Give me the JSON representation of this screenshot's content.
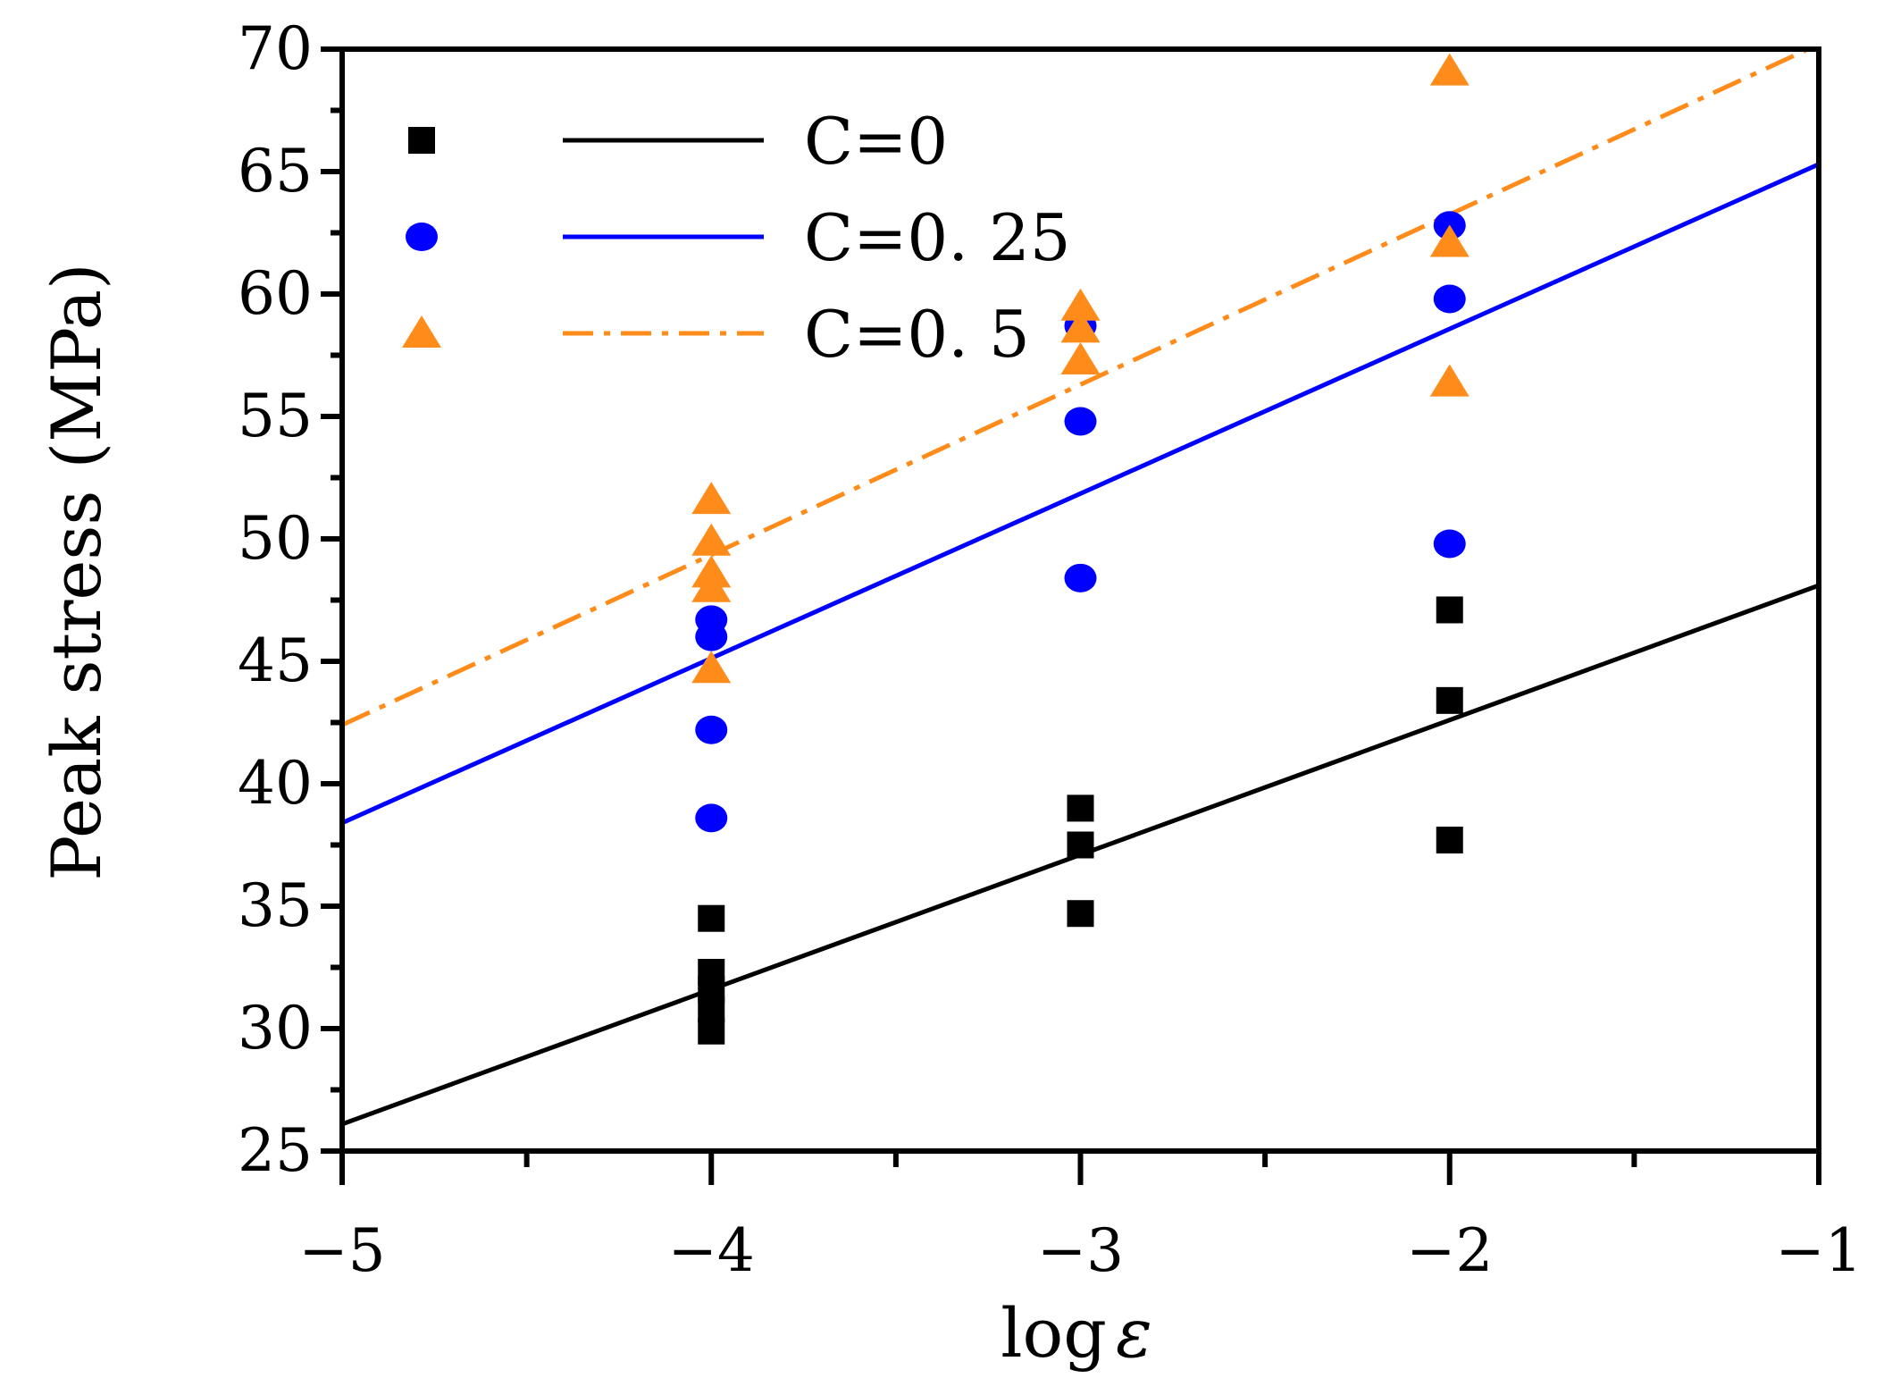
{
  "chart_data": {
    "type": "scatter",
    "title": "",
    "xlabel": "log",
    "xlabel_symbol": "ε",
    "ylabel": "Peak  stress (MPa)",
    "xlim": [
      -5,
      -1
    ],
    "ylim": [
      25,
      70
    ],
    "x_ticks": [
      -5,
      -4,
      -3,
      -2,
      -1
    ],
    "x_tick_labels": [
      "−5",
      "−4",
      "−3",
      "−2",
      "−1"
    ],
    "y_ticks": [
      25,
      30,
      35,
      40,
      45,
      50,
      55,
      60,
      65,
      70
    ],
    "y_tick_labels": [
      "25",
      "30",
      "35",
      "40",
      "45",
      "50",
      "55",
      "60",
      "65",
      "70"
    ],
    "grid": false,
    "legend_position": "top-left",
    "series": [
      {
        "name": "C=0",
        "marker": "square",
        "line_style": "solid",
        "color": "#000000",
        "points": [
          {
            "x": -4,
            "y": 34.5
          },
          {
            "x": -4,
            "y": 32.3
          },
          {
            "x": -4,
            "y": 31.6
          },
          {
            "x": -4,
            "y": 30.8
          },
          {
            "x": -4,
            "y": 29.9
          },
          {
            "x": -3,
            "y": 39.0
          },
          {
            "x": -3,
            "y": 37.5
          },
          {
            "x": -3,
            "y": 34.7
          },
          {
            "x": -2,
            "y": 47.1
          },
          {
            "x": -2,
            "y": 43.4
          },
          {
            "x": -2,
            "y": 37.7
          }
        ],
        "fit_line": {
          "x": [
            -5,
            -1
          ],
          "y": [
            26.1,
            48.1
          ]
        }
      },
      {
        "name": "C=0. 25",
        "marker": "circle",
        "line_style": "solid",
        "color": "#0000ff",
        "points": [
          {
            "x": -4,
            "y": 46.7
          },
          {
            "x": -4,
            "y": 46.0
          },
          {
            "x": -4,
            "y": 42.2
          },
          {
            "x": -4,
            "y": 38.6
          },
          {
            "x": -3,
            "y": 58.7
          },
          {
            "x": -3,
            "y": 54.8
          },
          {
            "x": -3,
            "y": 48.4
          },
          {
            "x": -2,
            "y": 62.8
          },
          {
            "x": -2,
            "y": 59.8
          },
          {
            "x": -2,
            "y": 49.8
          }
        ],
        "fit_line": {
          "x": [
            -5,
            -1
          ],
          "y": [
            38.4,
            65.3
          ]
        }
      },
      {
        "name": "C=0. 5",
        "marker": "triangle",
        "line_style": "dashdot",
        "color": "#ff8c1a",
        "points": [
          {
            "x": -4,
            "y": 51.6
          },
          {
            "x": -4,
            "y": 49.9
          },
          {
            "x": -4,
            "y": 48.6
          },
          {
            "x": -4,
            "y": 48.0
          },
          {
            "x": -4,
            "y": 44.7
          },
          {
            "x": -3,
            "y": 59.5
          },
          {
            "x": -3,
            "y": 58.6
          },
          {
            "x": -3,
            "y": 57.3
          },
          {
            "x": -2,
            "y": 69.1
          },
          {
            "x": -2,
            "y": 62.1
          },
          {
            "x": -2,
            "y": 56.4
          }
        ],
        "fit_line": {
          "x": [
            -5,
            -1
          ],
          "y": [
            42.4,
            70.2
          ]
        }
      }
    ]
  }
}
